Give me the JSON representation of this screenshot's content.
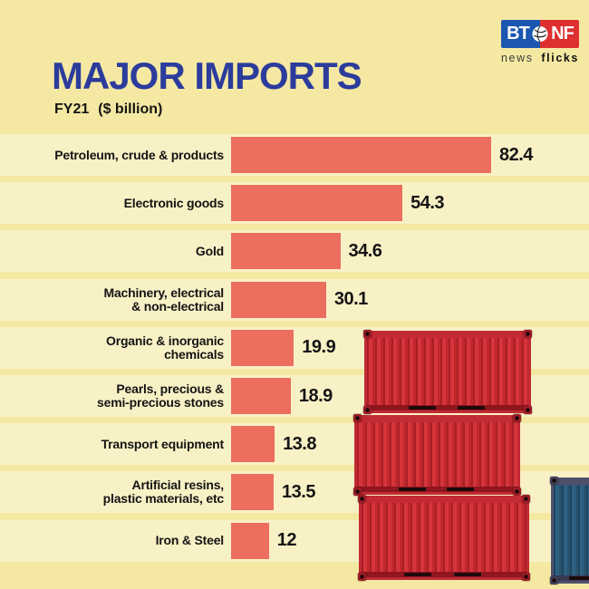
{
  "header": {
    "title": "MAJOR IMPORTS",
    "subtitle_period": "FY21",
    "subtitle_unit": "($ billion)",
    "title_color": "#2b3c9c"
  },
  "logo": {
    "left_text": "BT",
    "right_text": "NF",
    "wordmark_light": "news",
    "wordmark_bold": "flicks",
    "blue": "#1b57b0",
    "red": "#dd2f2f"
  },
  "chart_data": {
    "type": "bar",
    "orientation": "horizontal",
    "title": "MAJOR IMPORTS",
    "subtitle": "FY21 ($ billion)",
    "unit": "$ billion",
    "categories": [
      "Petroleum, crude & products",
      "Electronic goods",
      "Gold",
      "Machinery, electrical\n& non-electrical",
      "Organic & inorganic\nchemicals",
      "Pearls, precious &\nsemi-precious stones",
      "Transport equipment",
      "Artificial resins,\nplastic materials, etc",
      "Iron & Steel"
    ],
    "values": [
      82.4,
      54.3,
      34.6,
      30.1,
      19.9,
      18.9,
      13.8,
      13.5,
      12
    ],
    "value_labels": [
      "82.4",
      "54.3",
      "34.6",
      "30.1",
      "19.9",
      "18.9",
      "13.8",
      "13.5",
      "12"
    ],
    "xlim": [
      0,
      82.4
    ],
    "grid": false,
    "legend": false,
    "bar_color": "#ec6e5e",
    "band_color": "#f9f1c6",
    "background": "#f5e8a3",
    "value_text_color": "#141414"
  },
  "decor": {
    "containers": [
      "red-container-top",
      "red-container-middle",
      "red-container-bottom",
      "blue-container-edge"
    ]
  }
}
